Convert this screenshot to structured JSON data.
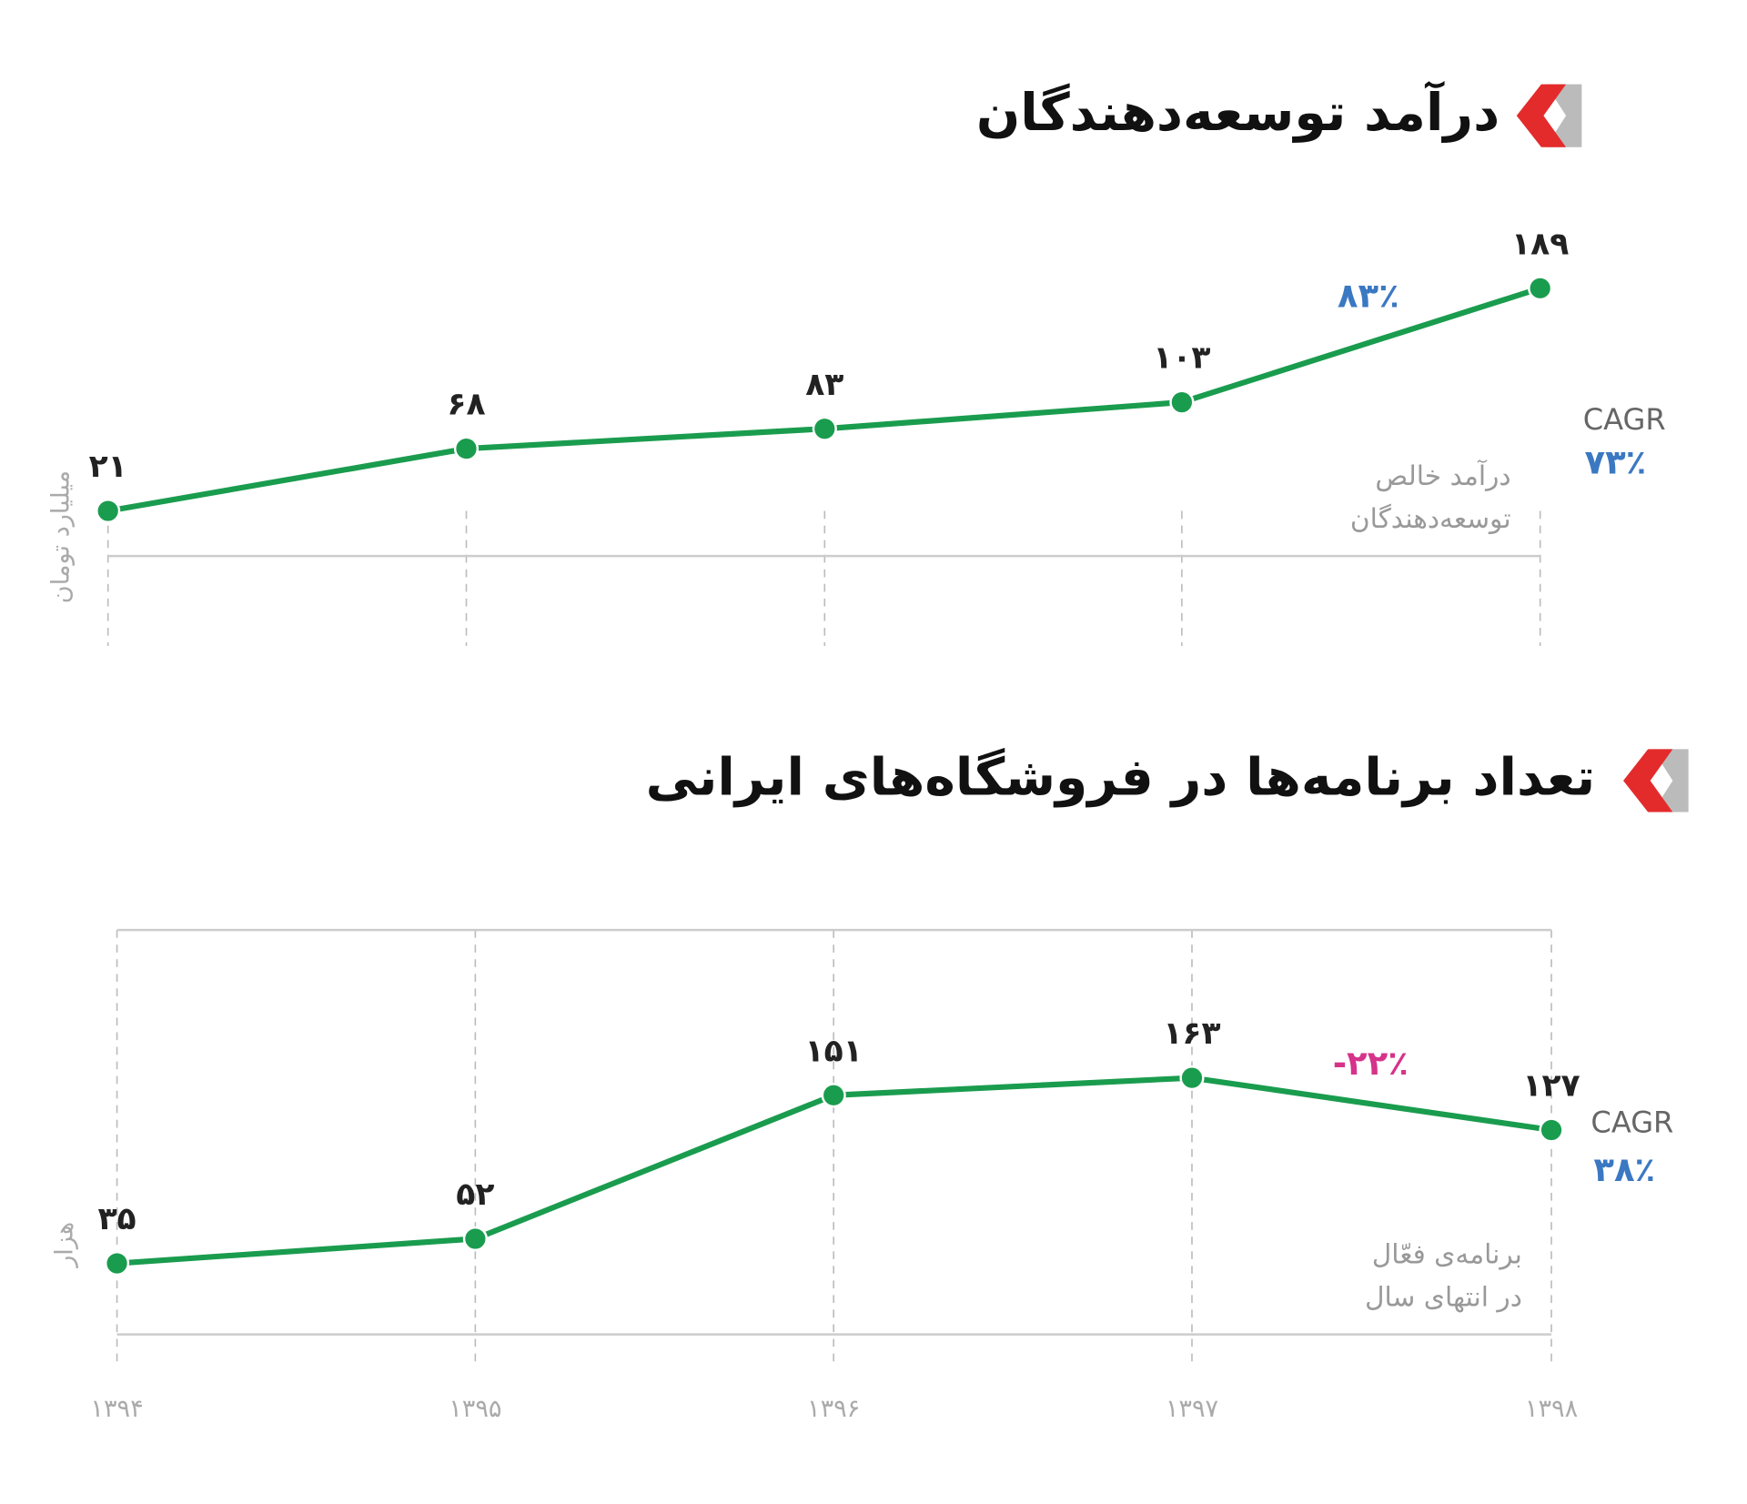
{
  "chart_data": [
    {
      "type": "line",
      "title": "درآمد توسعه‌دهندگان",
      "categories": [
        null,
        null,
        null,
        null,
        null
      ],
      "values": [
        21,
        68,
        83,
        103,
        189
      ],
      "value_labels": [
        "۲۱",
        "۶۸",
        "۸۳",
        "۱۰۳",
        "۱۸۹"
      ],
      "color": "#1a9c4e",
      "ylim": [
        -13,
        237
      ],
      "y_label": "میلیارد تومان",
      "description": [
        "درآمد خالص",
        "توسعه‌دهندگان"
      ],
      "growth_label": "۸۳٪",
      "growth_color": "#3b78c2",
      "cagr_label": "CAGR",
      "cagr_value": "۷۳٪",
      "cagr_color": "#3b78c2"
    },
    {
      "type": "line",
      "title": "تعداد برنامه‌ها در فروشگاه‌های ایرانی",
      "categories": [
        "۱۳۹۴",
        "۱۳۹۵",
        "۱۳۹۶",
        "۱۳۹۷",
        "۱۳۹۸"
      ],
      "values": [
        35,
        52,
        151,
        163,
        127
      ],
      "value_labels": [
        "۳۵",
        "۵۲",
        "۱۵۱",
        "۱۶۳",
        "۱۲۷"
      ],
      "color": "#1a9c4e",
      "ylim": [
        -14,
        265
      ],
      "y_label": "هزار",
      "description": [
        "برنامه‌ی فعّال",
        "در انتهای سال"
      ],
      "growth_label": "-۲۲٪",
      "growth_color": "#d6338a",
      "cagr_label": "CAGR",
      "cagr_value": "۳۸٪",
      "cagr_color": "#3b78c2"
    }
  ]
}
